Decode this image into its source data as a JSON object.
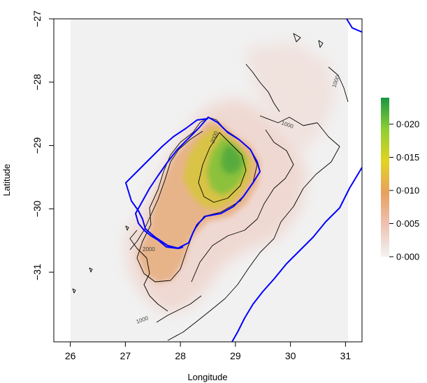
{
  "chart_data": {
    "type": "heatmap",
    "xlabel": "Longitude",
    "ylabel": "Latitude",
    "xlim": [
      25.7,
      31.3
    ],
    "ylim": [
      -32.1,
      -27.0
    ],
    "x_ticks": [
      26,
      27,
      28,
      29,
      30,
      31
    ],
    "x_tick_labels": [
      "26",
      "27",
      "28",
      "29",
      "30",
      "31"
    ],
    "y_ticks": [
      -27,
      -28,
      -29,
      -30,
      -31
    ],
    "y_tick_labels": [
      "−27",
      "−28",
      "−29",
      "−30",
      "−31"
    ],
    "legend": {
      "placement": "right",
      "range": [
        0,
        0.024
      ],
      "ticks": [
        0.0,
        0.005,
        0.01,
        0.015,
        0.02
      ],
      "tick_labels": [
        "0·000",
        "0·005",
        "0·010",
        "0·015",
        "0·020"
      ],
      "colors": [
        "#f2f2f2",
        "#eec3b4",
        "#e8a060",
        "#e3d322",
        "#8fcf33",
        "#1a9641"
      ]
    },
    "contour_labels": [
      "1000",
      "2000",
      "1000",
      "2000",
      "1000"
    ],
    "boundary_color": "#0000ff",
    "contour_color": "#000000"
  }
}
